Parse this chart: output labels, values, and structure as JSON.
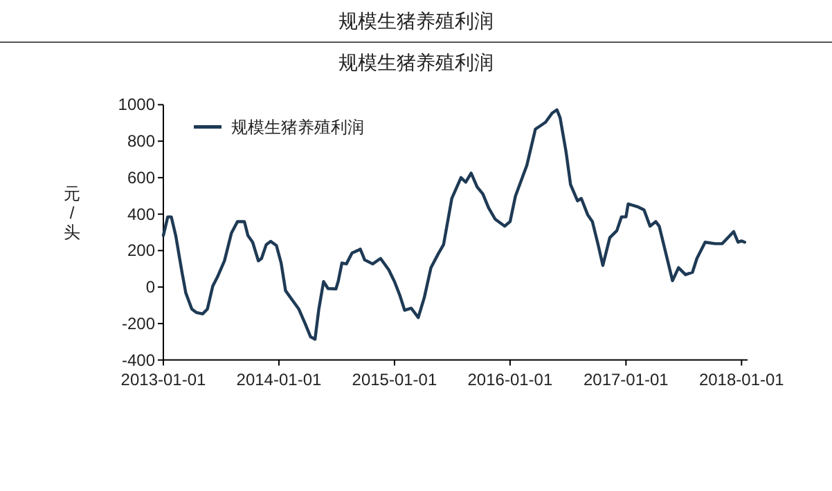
{
  "chart_data": {
    "type": "line",
    "title": "规模生猪养殖利润",
    "subtitle": "规模生猪养殖利润",
    "ylabel": "元/头",
    "legend": "top left",
    "grid": false,
    "xlim": [
      "2013-01-01",
      "2018-01-20"
    ],
    "xticks": [
      "2013-01-01",
      "2014-01-01",
      "2015-01-01",
      "2016-01-01",
      "2017-01-01",
      "2018-01-01"
    ],
    "ylim": [
      -400,
      1000
    ],
    "yticks": [
      -400,
      -200,
      0,
      200,
      400,
      600,
      800,
      1000
    ],
    "series": [
      {
        "name": "规模生猪养殖利润",
        "color": "#1e3a55",
        "x": [
          "2013-01-01",
          "2013-01-15",
          "2013-01-26",
          "2013-02-09",
          "2013-03-01",
          "2013-03-13",
          "2013-04-01",
          "2013-04-15",
          "2013-05-05",
          "2013-05-20",
          "2013-06-06",
          "2013-06-21",
          "2013-07-13",
          "2013-08-04",
          "2013-08-23",
          "2013-09-14",
          "2013-09-25",
          "2013-10-10",
          "2013-10-28",
          "2013-11-07",
          "2013-11-22",
          "2013-12-06",
          "2013-12-24",
          "2014-01-08",
          "2014-01-22",
          "2014-02-12",
          "2014-03-05",
          "2014-03-24",
          "2014-04-11",
          "2014-04-25",
          "2014-05-07",
          "2014-05-22",
          "2014-06-05",
          "2014-06-30",
          "2014-07-07",
          "2014-07-19",
          "2014-08-02",
          "2014-08-20",
          "2014-09-06",
          "2014-09-15",
          "2014-09-29",
          "2014-10-24",
          "2014-11-18",
          "2014-12-14",
          "2015-01-01",
          "2015-01-18",
          "2015-02-02",
          "2015-02-23",
          "2015-03-17",
          "2015-04-05",
          "2015-04-26",
          "2015-05-19",
          "2015-06-05",
          "2015-07-01",
          "2015-07-30",
          "2015-08-14",
          "2015-08-31",
          "2015-09-19",
          "2015-10-07",
          "2015-10-25",
          "2015-11-15",
          "2015-12-15",
          "2016-01-01",
          "2016-01-18",
          "2016-02-23",
          "2016-03-21",
          "2016-04-07",
          "2016-04-22",
          "2016-05-13",
          "2016-05-28",
          "2016-06-07",
          "2016-06-26",
          "2016-07-10",
          "2016-08-01",
          "2016-08-13",
          "2016-09-02",
          "2016-09-17",
          "2016-10-05",
          "2016-10-20",
          "2016-11-11",
          "2016-12-03",
          "2016-12-18",
          "2017-01-01",
          "2017-01-08",
          "2017-02-06",
          "2017-02-27",
          "2017-03-18",
          "2017-04-05",
          "2017-04-16",
          "2017-05-11",
          "2017-05-28",
          "2017-06-16",
          "2017-07-08",
          "2017-07-30",
          "2017-08-13",
          "2017-09-08",
          "2017-10-10",
          "2017-11-01",
          "2017-12-07",
          "2017-12-21",
          "2018-01-01",
          "2018-01-11"
        ],
        "values": [
          283,
          385,
          385,
          283,
          81,
          -33,
          -121,
          -139,
          -147,
          -121,
          5,
          56,
          144,
          296,
          359,
          359,
          283,
          246,
          144,
          157,
          233,
          251,
          228,
          132,
          -20,
          -71,
          -121,
          -197,
          -273,
          -286,
          -121,
          30,
          -8,
          -10,
          30,
          132,
          127,
          187,
          200,
          208,
          149,
          127,
          157,
          94,
          30,
          -46,
          -127,
          -116,
          -167,
          -58,
          106,
          182,
          233,
          486,
          600,
          575,
          625,
          549,
          511,
          435,
          372,
          334,
          359,
          499,
          668,
          866,
          886,
          904,
          954,
          972,
          929,
          739,
          562,
          473,
          486,
          397,
          359,
          233,
          119,
          271,
          309,
          385,
          385,
          456,
          441,
          423,
          334,
          359,
          334,
          157,
          35,
          106,
          68,
          81,
          157,
          246,
          238,
          238,
          304,
          246,
          253,
          246
        ]
      }
    ]
  }
}
